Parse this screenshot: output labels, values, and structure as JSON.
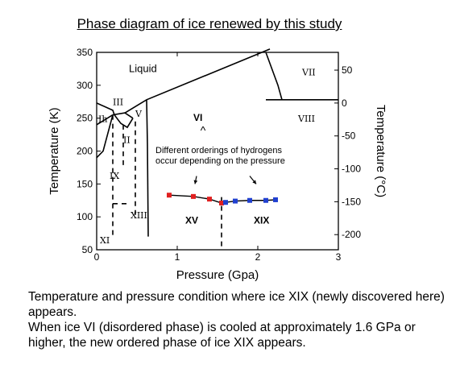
{
  "chart_data": {
    "type": "line",
    "title": "Phase diagram of ice renewed by this study",
    "xlabel": "Pressure (Gpa)",
    "ylabel": "Temperature (K)",
    "ylabel_right": "Temperature (°C)",
    "xlim": [
      0,
      3
    ],
    "ylim": [
      50,
      350
    ],
    "x_ticks": [
      "0",
      "1",
      "2",
      "3"
    ],
    "y_ticks": [
      "50",
      "100",
      "150",
      "200",
      "250",
      "300",
      "350"
    ],
    "y2_ticks": [
      "50",
      "0",
      "-50",
      "-100",
      "-150",
      "-200"
    ],
    "phase_labels": [
      {
        "text": "Liquid",
        "x": 0.4,
        "y": 320
      },
      {
        "text": "VII",
        "x": 2.55,
        "y": 315
      },
      {
        "text": "VIII",
        "x": 2.5,
        "y": 245
      },
      {
        "text": "VI",
        "x": 1.2,
        "y": 246
      },
      {
        "text": "III",
        "x": 0.2,
        "y": 270
      },
      {
        "text": "Ih",
        "x": 0.02,
        "y": 244
      },
      {
        "text": "V",
        "x": 0.48,
        "y": 252
      },
      {
        "text": "II",
        "x": 0.33,
        "y": 212
      },
      {
        "text": "IX",
        "x": 0.16,
        "y": 158
      },
      {
        "text": "XIII",
        "x": 0.42,
        "y": 98
      },
      {
        "text": "XI",
        "x": 0.04,
        "y": 60
      },
      {
        "text": "XV",
        "x": 1.1,
        "y": 90
      },
      {
        "text": "XIX",
        "x": 1.95,
        "y": 90
      }
    ],
    "annotation": {
      "lines": [
        "Different orderings of hydrogens",
        "occur depending on the pressure"
      ],
      "arrow_label": "^"
    },
    "series": [
      {
        "name": "",
        "color": "#e02020",
        "x": [
          0.9,
          1.2,
          1.4,
          1.55
        ],
        "y": [
          133,
          131,
          127,
          121
        ]
      },
      {
        "name": "",
        "color": "#2040d0",
        "x": [
          1.6,
          1.72,
          1.9,
          2.1,
          2.22
        ],
        "y": [
          122,
          124,
          125,
          125,
          126
        ]
      }
    ],
    "boundaries": [
      {
        "x": [
          0,
          0.2,
          0.22
        ],
        "y": [
          273,
          262,
          255
        ]
      },
      {
        "x": [
          0,
          0.2
        ],
        "y": [
          240,
          255
        ]
      },
      {
        "x": [
          0.2,
          0.35,
          0.45
        ],
        "y": [
          255,
          258,
          250
        ]
      },
      {
        "x": [
          0.35,
          0.62,
          2.15
        ],
        "y": [
          258,
          278,
          355
        ]
      },
      {
        "x": [
          2.1,
          2.25,
          2.3
        ],
        "y": [
          350,
          300,
          278
        ]
      },
      {
        "x": [
          2.1,
          3.0
        ],
        "y": [
          278,
          278
        ]
      },
      {
        "x": [
          0.62,
          0.63,
          0.64
        ],
        "y": [
          278,
          210,
          70
        ]
      },
      {
        "x": [
          0.22,
          0.3,
          0.38,
          0.45
        ],
        "y": [
          255,
          242,
          236,
          250
        ]
      },
      {
        "x": [
          0.2,
          0.08,
          0.0
        ],
        "y": [
          255,
          200,
          190
        ]
      }
    ],
    "dashed_lines": [
      {
        "x": [
          0.2,
          0.2
        ],
        "y": [
          255,
          70
        ]
      },
      {
        "x": [
          0.33,
          0.33
        ],
        "y": [
          240,
          175
        ]
      },
      {
        "x": [
          0.48,
          0.48
        ],
        "y": [
          245,
          100
        ]
      },
      {
        "x": [
          0.2,
          0.4
        ],
        "y": [
          120,
          120
        ]
      },
      {
        "x": [
          1.55,
          1.55
        ],
        "y": [
          130,
          50
        ]
      }
    ],
    "grid": false,
    "legend": "none"
  },
  "caption": [
    "Temperature and pressure condition where ice XIX (newly discovered here) appears.",
    "When ice VI (disordered phase) is cooled at approximately 1.6 GPa or higher, the new ordered phase of ice XIX appears."
  ]
}
